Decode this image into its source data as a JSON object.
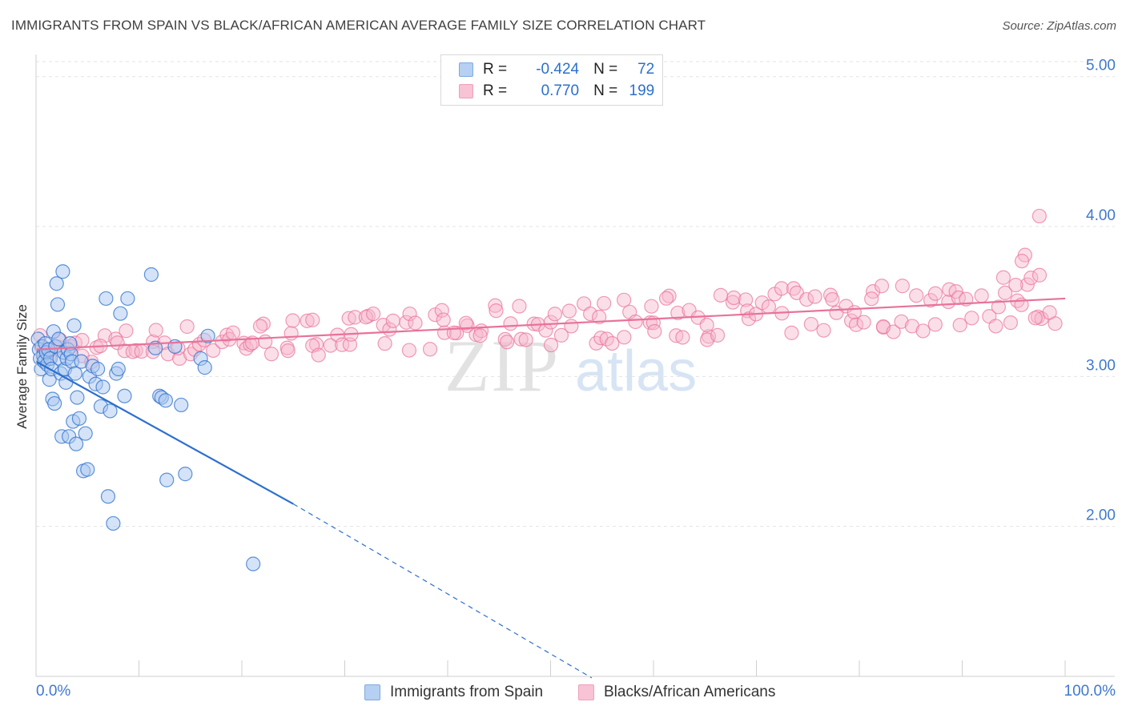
{
  "title": "IMMIGRANTS FROM SPAIN VS BLACK/AFRICAN AMERICAN AVERAGE FAMILY SIZE CORRELATION CHART",
  "source": "Source: ZipAtlas.com",
  "watermark": {
    "zip": "ZIP",
    "atlas": "atlas"
  },
  "stats": {
    "row1": {
      "r_label": "R =",
      "r_value": "-0.424",
      "n_label": "N =",
      "n_value": "72"
    },
    "row2": {
      "r_label": "R =",
      "r_value": "0.770",
      "n_label": "N =",
      "n_value": "199"
    }
  },
  "colors": {
    "blue": "#2c6fce",
    "blue_fill": "#a9c8f0",
    "pink": "#e8729a",
    "pink_fill": "#f6b9cd",
    "grid": "#e3e3e3",
    "axis_text": "#3f78d1"
  },
  "chart_data": {
    "type": "scatter",
    "title": "IMMIGRANTS FROM SPAIN VS BLACK/AFRICAN AMERICAN AVERAGE FAMILY SIZE CORRELATION CHART",
    "xlabel": "",
    "ylabel": "Average Family Size",
    "xlim": [
      0,
      100
    ],
    "ylim": [
      1.0,
      5.1
    ],
    "x_tick_labels": [
      "0.0%",
      "100.0%"
    ],
    "y_ticks": [
      2.0,
      3.0,
      4.0,
      5.0
    ],
    "y_tick_labels": [
      "2.00",
      "3.00",
      "4.00",
      "5.00"
    ],
    "legend": {
      "position": "bottom",
      "items": [
        "Immigrants from Spain",
        "Blacks/African Americans"
      ]
    },
    "series": [
      {
        "name": "Immigrants from Spain",
        "r": -0.424,
        "n": 72,
        "trend": {
          "x0": 0,
          "y0": 3.1,
          "x1": 25,
          "y1": 2.15,
          "dash_to_x": 54,
          "dash_to_y": 0.99
        },
        "points": [
          [
            0.2,
            3.25
          ],
          [
            0.3,
            3.18
          ],
          [
            0.4,
            3.12
          ],
          [
            0.5,
            3.05
          ],
          [
            0.6,
            3.2
          ],
          [
            0.7,
            3.14
          ],
          [
            0.8,
            3.1
          ],
          [
            0.9,
            3.22
          ],
          [
            1.0,
            3.16
          ],
          [
            1.1,
            3.08
          ],
          [
            1.2,
            3.18
          ],
          [
            1.3,
            2.98
          ],
          [
            1.4,
            3.12
          ],
          [
            1.5,
            3.05
          ],
          [
            1.6,
            2.85
          ],
          [
            1.7,
            3.3
          ],
          [
            1.8,
            2.82
          ],
          [
            1.9,
            3.2
          ],
          [
            2.0,
            3.62
          ],
          [
            2.1,
            3.48
          ],
          [
            2.2,
            3.25
          ],
          [
            2.3,
            3.12
          ],
          [
            2.4,
            3.02
          ],
          [
            2.5,
            2.6
          ],
          [
            2.6,
            3.7
          ],
          [
            2.7,
            3.16
          ],
          [
            2.8,
            3.05
          ],
          [
            2.9,
            2.96
          ],
          [
            3.0,
            3.12
          ],
          [
            3.1,
            3.18
          ],
          [
            3.2,
            2.6
          ],
          [
            3.3,
            3.22
          ],
          [
            3.4,
            3.15
          ],
          [
            3.5,
            3.1
          ],
          [
            3.6,
            2.7
          ],
          [
            3.7,
            3.34
          ],
          [
            3.8,
            3.02
          ],
          [
            3.9,
            2.55
          ],
          [
            4.0,
            2.86
          ],
          [
            4.2,
            2.72
          ],
          [
            4.4,
            3.1
          ],
          [
            4.6,
            2.37
          ],
          [
            4.8,
            2.62
          ],
          [
            5.0,
            2.38
          ],
          [
            5.2,
            3.0
          ],
          [
            5.5,
            3.07
          ],
          [
            5.8,
            2.95
          ],
          [
            6.0,
            3.05
          ],
          [
            6.3,
            2.8
          ],
          [
            6.5,
            2.93
          ],
          [
            6.8,
            3.52
          ],
          [
            7.0,
            2.2
          ],
          [
            7.2,
            2.77
          ],
          [
            7.5,
            2.02
          ],
          [
            7.8,
            3.02
          ],
          [
            8.0,
            3.05
          ],
          [
            8.2,
            3.42
          ],
          [
            8.6,
            2.87
          ],
          [
            8.9,
            3.52
          ],
          [
            11.2,
            3.68
          ],
          [
            11.6,
            3.19
          ],
          [
            12.0,
            2.87
          ],
          [
            12.2,
            2.86
          ],
          [
            12.6,
            2.84
          ],
          [
            12.7,
            2.31
          ],
          [
            13.5,
            3.2
          ],
          [
            14.1,
            2.81
          ],
          [
            14.5,
            2.35
          ],
          [
            16.0,
            3.12
          ],
          [
            16.4,
            3.06
          ],
          [
            16.7,
            3.27
          ],
          [
            21.1,
            1.75
          ]
        ]
      },
      {
        "name": "Blacks/African Americans",
        "r": 0.77,
        "n": 199,
        "trend": {
          "x0": 0,
          "y0": 3.18,
          "x1": 100,
          "y1": 3.52
        },
        "points": []
      }
    ]
  }
}
